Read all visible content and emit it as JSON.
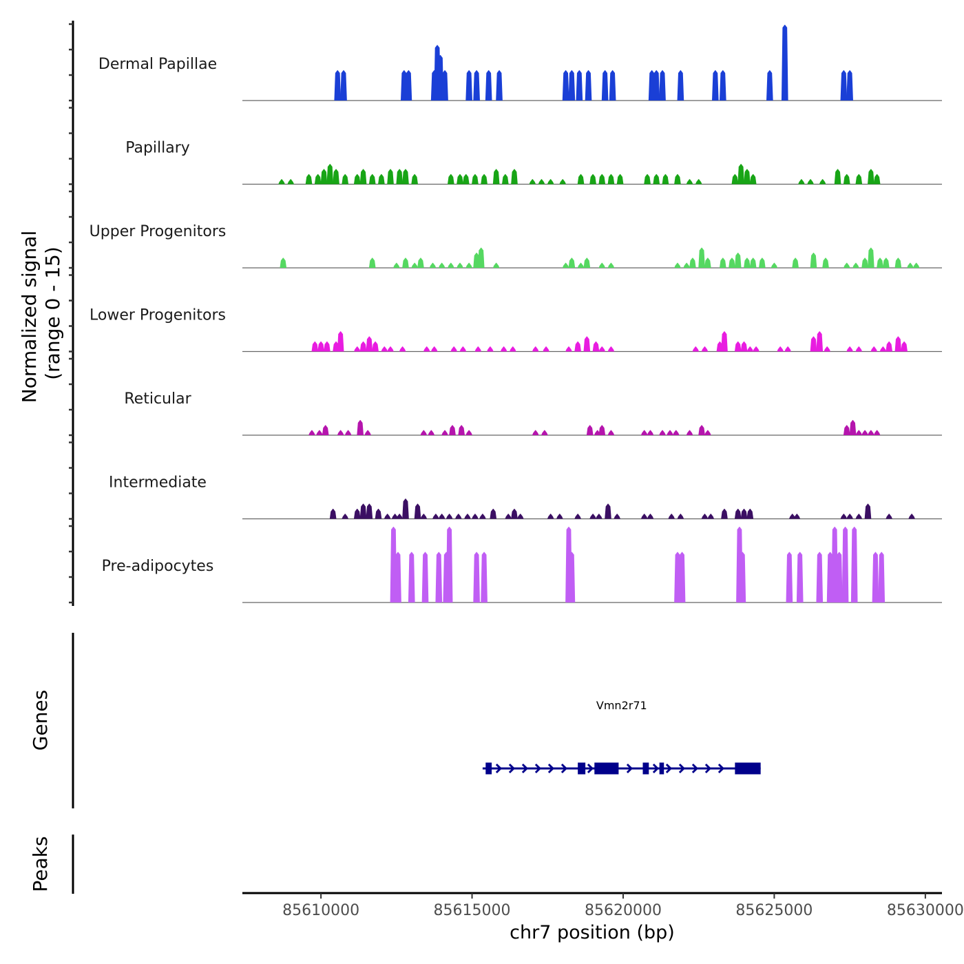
{
  "chart_data": {
    "type": "area",
    "title": "",
    "ylabel": "Normalized signal\n(range 0 - 15)",
    "ylabel_lines": [
      "Normalized signal",
      "(range 0 - 15)"
    ],
    "y_range": [
      0,
      15
    ],
    "xlabel": "chr7 position (bp)",
    "x_range": [
      85607400,
      85630550
    ],
    "x_ticks": [
      85610000,
      85615000,
      85620000,
      85625000,
      85630000
    ],
    "x_tick_labels": [
      "85610000",
      "85615000",
      "85620000",
      "85625000",
      "85630000"
    ],
    "tracks": [
      {
        "name": "Dermal Papillae",
        "color": "#1a3fd6",
        "peaks": [
          [
            85610550,
            6
          ],
          [
            85610750,
            6
          ],
          [
            85612750,
            6
          ],
          [
            85612900,
            6
          ],
          [
            85613750,
            6
          ],
          [
            85613850,
            11
          ],
          [
            85613950,
            9
          ],
          [
            85614100,
            6
          ],
          [
            85614900,
            6
          ],
          [
            85615150,
            6
          ],
          [
            85615550,
            6
          ],
          [
            85615900,
            6
          ],
          [
            85618100,
            6
          ],
          [
            85618300,
            6
          ],
          [
            85618550,
            6
          ],
          [
            85618850,
            6
          ],
          [
            85619400,
            6
          ],
          [
            85619650,
            6
          ],
          [
            85620950,
            6
          ],
          [
            85621100,
            6
          ],
          [
            85621300,
            6
          ],
          [
            85621900,
            6
          ],
          [
            85623050,
            6
          ],
          [
            85623300,
            6
          ],
          [
            85624850,
            6
          ],
          [
            85625350,
            15
          ],
          [
            85627300,
            6
          ],
          [
            85627500,
            6
          ]
        ]
      },
      {
        "name": "Papillary",
        "color": "#18a516",
        "peaks": [
          [
            85608700,
            1
          ],
          [
            85609000,
            1
          ],
          [
            85609600,
            2
          ],
          [
            85609900,
            2
          ],
          [
            85610100,
            3
          ],
          [
            85610300,
            4
          ],
          [
            85610500,
            3
          ],
          [
            85610800,
            2
          ],
          [
            85611200,
            2
          ],
          [
            85611400,
            3
          ],
          [
            85611700,
            2
          ],
          [
            85612000,
            2
          ],
          [
            85612300,
            3
          ],
          [
            85612600,
            3
          ],
          [
            85612800,
            3
          ],
          [
            85613100,
            2
          ],
          [
            85614300,
            2
          ],
          [
            85614600,
            2
          ],
          [
            85614800,
            2
          ],
          [
            85615100,
            2
          ],
          [
            85615400,
            2
          ],
          [
            85615800,
            3
          ],
          [
            85616100,
            2
          ],
          [
            85616400,
            3
          ],
          [
            85617000,
            1
          ],
          [
            85617300,
            1
          ],
          [
            85617600,
            1
          ],
          [
            85618000,
            1
          ],
          [
            85618600,
            2
          ],
          [
            85619000,
            2
          ],
          [
            85619300,
            2
          ],
          [
            85619600,
            2
          ],
          [
            85619900,
            2
          ],
          [
            85620800,
            2
          ],
          [
            85621100,
            2
          ],
          [
            85621400,
            2
          ],
          [
            85621800,
            2
          ],
          [
            85622200,
            1
          ],
          [
            85622500,
            1
          ],
          [
            85623700,
            2
          ],
          [
            85623900,
            4
          ],
          [
            85624100,
            3
          ],
          [
            85624300,
            2
          ],
          [
            85625900,
            1
          ],
          [
            85626200,
            1
          ],
          [
            85626600,
            1
          ],
          [
            85627100,
            3
          ],
          [
            85627400,
            2
          ],
          [
            85627800,
            2
          ],
          [
            85628200,
            3
          ],
          [
            85628400,
            2
          ]
        ]
      },
      {
        "name": "Upper Progenitors",
        "color": "#55d861",
        "peaks": [
          [
            85608750,
            2
          ],
          [
            85611700,
            2
          ],
          [
            85612500,
            1
          ],
          [
            85612800,
            2
          ],
          [
            85613100,
            1
          ],
          [
            85613300,
            2
          ],
          [
            85613700,
            1
          ],
          [
            85614000,
            1
          ],
          [
            85614300,
            1
          ],
          [
            85614600,
            1
          ],
          [
            85614900,
            1
          ],
          [
            85615150,
            3
          ],
          [
            85615300,
            4
          ],
          [
            85615800,
            1
          ],
          [
            85618100,
            1
          ],
          [
            85618300,
            2
          ],
          [
            85618600,
            1
          ],
          [
            85618800,
            2
          ],
          [
            85619300,
            1
          ],
          [
            85619600,
            1
          ],
          [
            85621800,
            1
          ],
          [
            85622100,
            1
          ],
          [
            85622300,
            2
          ],
          [
            85622600,
            4
          ],
          [
            85622800,
            2
          ],
          [
            85623300,
            2
          ],
          [
            85623600,
            2
          ],
          [
            85623800,
            3
          ],
          [
            85624100,
            2
          ],
          [
            85624300,
            2
          ],
          [
            85624600,
            2
          ],
          [
            85625000,
            1
          ],
          [
            85625700,
            2
          ],
          [
            85626300,
            3
          ],
          [
            85626700,
            2
          ],
          [
            85627400,
            1
          ],
          [
            85627700,
            1
          ],
          [
            85628000,
            2
          ],
          [
            85628200,
            4
          ],
          [
            85628500,
            2
          ],
          [
            85628700,
            2
          ],
          [
            85629100,
            2
          ],
          [
            85629500,
            1
          ],
          [
            85629700,
            1
          ]
        ]
      },
      {
        "name": "Lower Progenitors",
        "color": "#e81ce0",
        "peaks": [
          [
            85609800,
            2
          ],
          [
            85610000,
            2
          ],
          [
            85610200,
            2
          ],
          [
            85610500,
            2
          ],
          [
            85610650,
            4
          ],
          [
            85611200,
            1
          ],
          [
            85611400,
            2
          ],
          [
            85611600,
            3
          ],
          [
            85611800,
            2
          ],
          [
            85612100,
            1
          ],
          [
            85612300,
            1
          ],
          [
            85612700,
            1
          ],
          [
            85613500,
            1
          ],
          [
            85613750,
            1
          ],
          [
            85614400,
            1
          ],
          [
            85614700,
            1
          ],
          [
            85615200,
            1
          ],
          [
            85615600,
            1
          ],
          [
            85616050,
            1
          ],
          [
            85616350,
            1
          ],
          [
            85617100,
            1
          ],
          [
            85617450,
            1
          ],
          [
            85618200,
            1
          ],
          [
            85618500,
            2
          ],
          [
            85618800,
            3
          ],
          [
            85619100,
            2
          ],
          [
            85619300,
            1
          ],
          [
            85619600,
            1
          ],
          [
            85622400,
            1
          ],
          [
            85622700,
            1
          ],
          [
            85623200,
            2
          ],
          [
            85623350,
            4
          ],
          [
            85623800,
            2
          ],
          [
            85624000,
            2
          ],
          [
            85624200,
            1
          ],
          [
            85624400,
            1
          ],
          [
            85625200,
            1
          ],
          [
            85625450,
            1
          ],
          [
            85626300,
            3
          ],
          [
            85626500,
            4
          ],
          [
            85626750,
            1
          ],
          [
            85627500,
            1
          ],
          [
            85627800,
            1
          ],
          [
            85628300,
            1
          ],
          [
            85628600,
            1
          ],
          [
            85628800,
            2
          ],
          [
            85629100,
            3
          ],
          [
            85629300,
            2
          ]
        ]
      },
      {
        "name": "Reticular",
        "color": "#b515ad",
        "peaks": [
          [
            85609700,
            1
          ],
          [
            85609950,
            1
          ],
          [
            85610150,
            2
          ],
          [
            85610650,
            1
          ],
          [
            85610900,
            1
          ],
          [
            85611300,
            3
          ],
          [
            85611550,
            1
          ],
          [
            85613400,
            1
          ],
          [
            85613650,
            1
          ],
          [
            85614100,
            1
          ],
          [
            85614350,
            2
          ],
          [
            85614650,
            2
          ],
          [
            85614900,
            1
          ],
          [
            85617100,
            1
          ],
          [
            85617400,
            1
          ],
          [
            85618900,
            2
          ],
          [
            85619150,
            1
          ],
          [
            85619300,
            2
          ],
          [
            85619600,
            1
          ],
          [
            85620700,
            1
          ],
          [
            85620900,
            1
          ],
          [
            85621300,
            1
          ],
          [
            85621550,
            1
          ],
          [
            85621750,
            1
          ],
          [
            85622200,
            1
          ],
          [
            85622600,
            2
          ],
          [
            85622800,
            1
          ],
          [
            85627400,
            2
          ],
          [
            85627600,
            3
          ],
          [
            85627800,
            1
          ],
          [
            85628000,
            1
          ],
          [
            85628200,
            1
          ],
          [
            85628400,
            1
          ]
        ]
      },
      {
        "name": "Intermediate",
        "color": "#3b0f63",
        "peaks": [
          [
            85610400,
            2
          ],
          [
            85610800,
            1
          ],
          [
            85611200,
            2
          ],
          [
            85611400,
            3
          ],
          [
            85611600,
            3
          ],
          [
            85611900,
            2
          ],
          [
            85612200,
            1
          ],
          [
            85612450,
            1
          ],
          [
            85612600,
            1
          ],
          [
            85612800,
            4
          ],
          [
            85613200,
            3
          ],
          [
            85613400,
            1
          ],
          [
            85613800,
            1
          ],
          [
            85614000,
            1
          ],
          [
            85614250,
            1
          ],
          [
            85614550,
            1
          ],
          [
            85614850,
            1
          ],
          [
            85615100,
            1
          ],
          [
            85615350,
            1
          ],
          [
            85615700,
            2
          ],
          [
            85616200,
            1
          ],
          [
            85616400,
            2
          ],
          [
            85616600,
            1
          ],
          [
            85617600,
            1
          ],
          [
            85617900,
            1
          ],
          [
            85618500,
            1
          ],
          [
            85619000,
            1
          ],
          [
            85619200,
            1
          ],
          [
            85619500,
            3
          ],
          [
            85619800,
            1
          ],
          [
            85620700,
            1
          ],
          [
            85620900,
            1
          ],
          [
            85621600,
            1
          ],
          [
            85621900,
            1
          ],
          [
            85622700,
            1
          ],
          [
            85622900,
            1
          ],
          [
            85623350,
            2
          ],
          [
            85623800,
            2
          ],
          [
            85624000,
            2
          ],
          [
            85624200,
            2
          ],
          [
            85625600,
            1
          ],
          [
            85625750,
            1
          ],
          [
            85627300,
            1
          ],
          [
            85627500,
            1
          ],
          [
            85627800,
            1
          ],
          [
            85628100,
            3
          ],
          [
            85628800,
            1
          ],
          [
            85629550,
            1
          ]
        ]
      },
      {
        "name": "Pre-adipocytes",
        "color": "#c05ef4",
        "peaks": [
          [
            85612400,
            15
          ],
          [
            85612550,
            10
          ],
          [
            85613000,
            10
          ],
          [
            85613450,
            10
          ],
          [
            85613900,
            10
          ],
          [
            85614150,
            10
          ],
          [
            85614250,
            15
          ],
          [
            85615150,
            10
          ],
          [
            85615400,
            10
          ],
          [
            85618200,
            15
          ],
          [
            85618300,
            10
          ],
          [
            85621800,
            10
          ],
          [
            85621950,
            10
          ],
          [
            85623850,
            15
          ],
          [
            85623950,
            10
          ],
          [
            85625500,
            10
          ],
          [
            85625850,
            10
          ],
          [
            85626500,
            10
          ],
          [
            85626850,
            10
          ],
          [
            85627000,
            15
          ],
          [
            85627150,
            10
          ],
          [
            85627350,
            15
          ],
          [
            85627650,
            15
          ],
          [
            85628350,
            10
          ],
          [
            85628550,
            10
          ]
        ]
      }
    ],
    "genes_track": {
      "label": "Genes",
      "color": "#00008b",
      "genes": [
        {
          "name": "Vmn2r71",
          "strand": "+",
          "start": 85615350,
          "end": 85624550,
          "exons": [
            [
              85615450,
              85615650
            ],
            [
              85618500,
              85618750
            ],
            [
              85619050,
              85619850
            ],
            [
              85620650,
              85620850
            ],
            [
              85621200,
              85621350
            ],
            [
              85623700,
              85624550
            ]
          ]
        }
      ]
    },
    "peaks_track": {
      "label": "Peaks",
      "regions": []
    }
  }
}
